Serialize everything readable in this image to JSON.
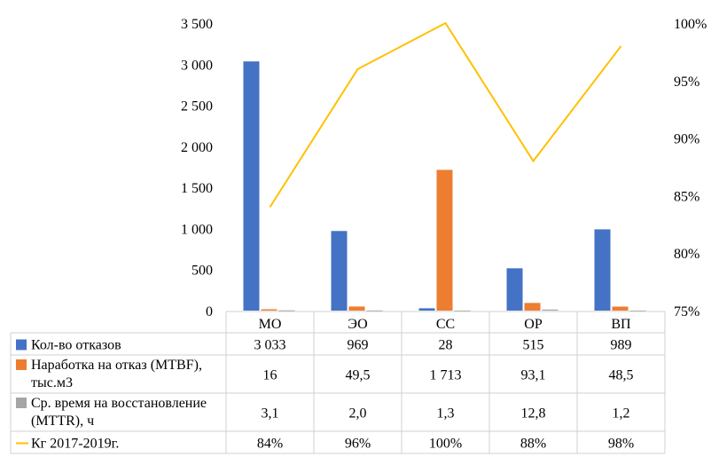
{
  "chart_data": {
    "type": "bar",
    "categories": [
      "МО",
      "ЭО",
      "СС",
      "ОР",
      "ВП"
    ],
    "series": [
      {
        "name": "Кол-во отказов",
        "kind": "bar",
        "axis": "left",
        "color": "#4472C4",
        "values": [
          3033,
          969,
          28,
          515,
          989
        ],
        "table_values": [
          "3 033",
          "969",
          "28",
          "515",
          "989"
        ]
      },
      {
        "name": "Наработка на отказ (MTBF), тыс.м3",
        "kind": "bar",
        "axis": "left",
        "color": "#ED7D31",
        "values": [
          16,
          49.5,
          1713,
          93.1,
          48.5
        ],
        "table_values": [
          "16",
          "49,5",
          "1 713",
          "93,1",
          "48,5"
        ]
      },
      {
        "name": "Ср. время на восстановление (MTTR), ч",
        "kind": "bar",
        "axis": "left",
        "color": "#A5A5A5",
        "values": [
          3.1,
          2.0,
          1.3,
          12.8,
          1.2
        ],
        "table_values": [
          "3,1",
          "2,0",
          "1,3",
          "12,8",
          "1,2"
        ]
      },
      {
        "name": "Кг 2017-2019г.",
        "kind": "line",
        "axis": "right",
        "color": "#FFC000",
        "values": [
          84,
          96,
          100,
          88,
          98
        ],
        "table_values": [
          "84%",
          "96%",
          "100%",
          "88%",
          "98%"
        ]
      }
    ],
    "legend_lines": [
      [
        "Кол-во отказов"
      ],
      [
        "Наработка на отказ (MTBF),",
        "тыс.м3"
      ],
      [
        "Ср. время на восстановление",
        "(MTTR), ч"
      ],
      [
        "Кг 2017-2019г."
      ]
    ],
    "y_left": {
      "min": 0,
      "max": 3500,
      "ticks": [
        0,
        500,
        1000,
        1500,
        2000,
        2500,
        3000,
        3500
      ],
      "tick_labels": [
        "0",
        "500",
        "1 000",
        "1 500",
        "2 000",
        "2 500",
        "3 000",
        "3 500"
      ]
    },
    "y_right": {
      "min": 75,
      "max": 100,
      "ticks": [
        75,
        80,
        85,
        90,
        95,
        100
      ],
      "tick_labels": [
        "75%",
        "80%",
        "85%",
        "90%",
        "95%",
        "100%"
      ]
    },
    "grid": false,
    "legend": "data-table"
  }
}
